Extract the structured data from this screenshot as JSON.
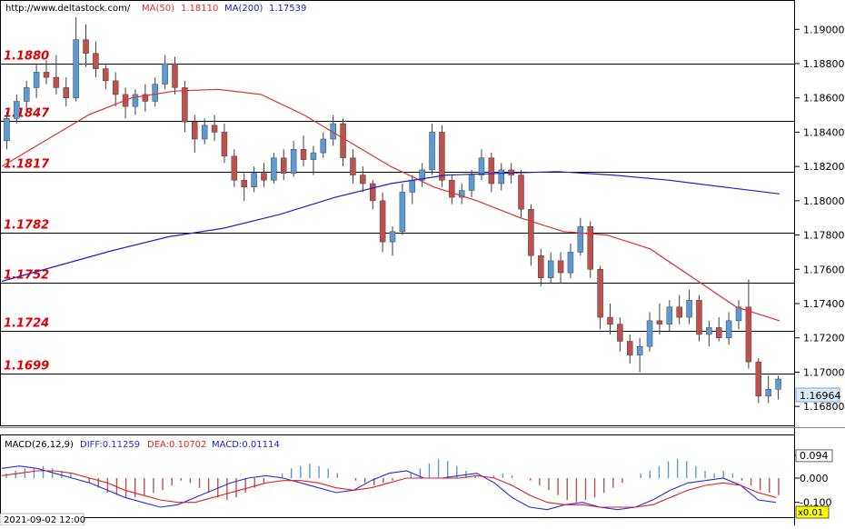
{
  "header": {
    "url": "http://www.deltastock.com/",
    "ma50_label": "MA(50)",
    "ma50_value": "1.18110",
    "ma200_label": "MA(200)",
    "ma200_value": "1.17539"
  },
  "colors": {
    "bull": "#5b9bd5",
    "bear": "#c0504d",
    "ma50": "#e03030",
    "ma200": "#2020c8",
    "level_text": "#e00000",
    "macd_diff": "#2b2be0",
    "macd_dea": "#e02020"
  },
  "chart_data": [
    {
      "type": "candlestick",
      "ylim": [
        1.167,
        1.1915
      ],
      "y_ticks": [
        "1.19000",
        "1.18800",
        "1.18600",
        "1.18400",
        "1.18200",
        "1.18000",
        "1.17800",
        "1.17600",
        "1.17400",
        "1.17200",
        "1.17000",
        "1.16800"
      ],
      "y_tick_values": [
        1.19,
        1.188,
        1.186,
        1.184,
        1.182,
        1.18,
        1.178,
        1.176,
        1.174,
        1.172,
        1.17,
        1.168
      ],
      "last_price": "1.16964",
      "last_price_value": 1.16964,
      "levels": [
        {
          "label": "1.1880",
          "value": 1.188
        },
        {
          "label": "1.1847",
          "value": 1.18468
        },
        {
          "label": "1.1817",
          "value": 1.18168
        },
        {
          "label": "1.1782",
          "value": 1.17815
        },
        {
          "label": "1.1752",
          "value": 1.17522
        },
        {
          "label": "1.1724",
          "value": 1.17243
        },
        {
          "label": "1.1699",
          "value": 1.16993
        }
      ],
      "candles_ohlc": [
        [
          1.1835,
          1.1852,
          1.183,
          1.1848
        ],
        [
          1.1848,
          1.1862,
          1.1845,
          1.1858
        ],
        [
          1.1858,
          1.187,
          1.1852,
          1.1866
        ],
        [
          1.1866,
          1.188,
          1.186,
          1.1875
        ],
        [
          1.1875,
          1.1882,
          1.1868,
          1.1872
        ],
        [
          1.1872,
          1.1885,
          1.1862,
          1.1866
        ],
        [
          1.1866,
          1.1872,
          1.1855,
          1.186
        ],
        [
          1.186,
          1.1907,
          1.1858,
          1.1894
        ],
        [
          1.1894,
          1.1903,
          1.1878,
          1.1886
        ],
        [
          1.1886,
          1.1893,
          1.1872,
          1.1877
        ],
        [
          1.1877,
          1.188,
          1.1865,
          1.187
        ],
        [
          1.187,
          1.1875,
          1.1855,
          1.1862
        ],
        [
          1.1862,
          1.1866,
          1.1848,
          1.1855
        ],
        [
          1.1855,
          1.1865,
          1.185,
          1.1862
        ],
        [
          1.1862,
          1.1868,
          1.1852,
          1.1858
        ],
        [
          1.1858,
          1.1872,
          1.1855,
          1.1868
        ],
        [
          1.1868,
          1.1885,
          1.1865,
          1.188
        ],
        [
          1.188,
          1.1884,
          1.1862,
          1.1866
        ],
        [
          1.1866,
          1.187,
          1.184,
          1.1846
        ],
        [
          1.1846,
          1.185,
          1.1828,
          1.1836
        ],
        [
          1.1836,
          1.1848,
          1.1833,
          1.1844
        ],
        [
          1.1844,
          1.185,
          1.1835,
          1.184
        ],
        [
          1.184,
          1.1845,
          1.1822,
          1.1826
        ],
        [
          1.1826,
          1.183,
          1.1808,
          1.1812
        ],
        [
          1.1812,
          1.1816,
          1.18,
          1.1808
        ],
        [
          1.1808,
          1.182,
          1.1805,
          1.1816
        ],
        [
          1.1816,
          1.1822,
          1.1808,
          1.1812
        ],
        [
          1.1812,
          1.1828,
          1.181,
          1.1825
        ],
        [
          1.1825,
          1.183,
          1.1812,
          1.1816
        ],
        [
          1.1816,
          1.1835,
          1.1814,
          1.183
        ],
        [
          1.183,
          1.1838,
          1.182,
          1.1824
        ],
        [
          1.1824,
          1.1832,
          1.1815,
          1.1828
        ],
        [
          1.1828,
          1.184,
          1.1825,
          1.1836
        ],
        [
          1.1836,
          1.185,
          1.1832,
          1.1845
        ],
        [
          1.1845,
          1.1848,
          1.182,
          1.1825
        ],
        [
          1.1825,
          1.183,
          1.181,
          1.1815
        ],
        [
          1.1815,
          1.182,
          1.1805,
          1.181
        ],
        [
          1.181,
          1.1812,
          1.1795,
          1.18
        ],
        [
          1.18,
          1.1805,
          1.177,
          1.1776
        ],
        [
          1.1776,
          1.1785,
          1.1768,
          1.1782
        ],
        [
          1.1782,
          1.181,
          1.178,
          1.1805
        ],
        [
          1.1805,
          1.1815,
          1.1798,
          1.1812
        ],
        [
          1.1812,
          1.1822,
          1.1808,
          1.1818
        ],
        [
          1.1818,
          1.1845,
          1.1815,
          1.184
        ],
        [
          1.184,
          1.1844,
          1.1808,
          1.1812
        ],
        [
          1.1812,
          1.1815,
          1.1798,
          1.1802
        ],
        [
          1.1802,
          1.181,
          1.1798,
          1.1806
        ],
        [
          1.1806,
          1.1818,
          1.1802,
          1.1815
        ],
        [
          1.1815,
          1.183,
          1.1812,
          1.1825
        ],
        [
          1.1825,
          1.1828,
          1.1805,
          1.181
        ],
        [
          1.181,
          1.1822,
          1.1806,
          1.1818
        ],
        [
          1.1818,
          1.1822,
          1.181,
          1.1815
        ],
        [
          1.1815,
          1.1818,
          1.179,
          1.1795
        ],
        [
          1.1795,
          1.1798,
          1.1762,
          1.1768
        ],
        [
          1.1768,
          1.1772,
          1.175,
          1.1755
        ],
        [
          1.1755,
          1.177,
          1.1752,
          1.1765
        ],
        [
          1.1765,
          1.177,
          1.1752,
          1.1758
        ],
        [
          1.1758,
          1.1775,
          1.1755,
          1.177
        ],
        [
          1.177,
          1.179,
          1.1768,
          1.1785
        ],
        [
          1.1785,
          1.1788,
          1.1755,
          1.176
        ],
        [
          1.176,
          1.1762,
          1.1725,
          1.1732
        ],
        [
          1.1732,
          1.174,
          1.1722,
          1.1728
        ],
        [
          1.1728,
          1.1732,
          1.1712,
          1.1718
        ],
        [
          1.1718,
          1.1722,
          1.1705,
          1.171
        ],
        [
          1.171,
          1.172,
          1.17,
          1.1715
        ],
        [
          1.1715,
          1.1735,
          1.1712,
          1.173
        ],
        [
          1.173,
          1.174,
          1.1722,
          1.1728
        ],
        [
          1.1728,
          1.1742,
          1.1724,
          1.1738
        ],
        [
          1.1738,
          1.1745,
          1.1728,
          1.1732
        ],
        [
          1.1732,
          1.1748,
          1.1728,
          1.1742
        ],
        [
          1.1742,
          1.1745,
          1.1718,
          1.1722
        ],
        [
          1.1722,
          1.173,
          1.1715,
          1.1726
        ],
        [
          1.1726,
          1.1732,
          1.1718,
          1.172
        ],
        [
          1.172,
          1.1735,
          1.1716,
          1.173
        ],
        [
          1.173,
          1.1742,
          1.1725,
          1.1738
        ],
        [
          1.1738,
          1.1754,
          1.1702,
          1.1706
        ],
        [
          1.1706,
          1.1708,
          1.1682,
          1.1686
        ],
        [
          1.1686,
          1.1698,
          1.1682,
          1.169
        ],
        [
          1.169,
          1.1698,
          1.1684,
          1.1696
        ]
      ],
      "ma50": [
        1.182,
        1.1835,
        1.185,
        1.186,
        1.1864,
        1.1865,
        1.1862,
        1.185,
        1.1835,
        1.182,
        1.1808,
        1.18,
        1.179,
        1.1782,
        1.178,
        1.1772,
        1.1755,
        1.1738,
        1.173
      ],
      "ma200": [
        1.1753,
        1.1762,
        1.1771,
        1.1779,
        1.1784,
        1.1792,
        1.1802,
        1.181,
        1.1815,
        1.1816,
        1.1817,
        1.1815,
        1.1812,
        1.1808,
        1.1804
      ],
      "series": [
        {
          "name": "MA(50)"
        },
        {
          "name": "MA(200)"
        }
      ]
    },
    {
      "type": "macd",
      "title": "MACD(26,12,9)",
      "diff_label": "DIFF:0.11259",
      "dea_label": "DEA:0.10702",
      "macd_label": "MACD:0.01114",
      "ylim": [
        -0.15,
        0.12
      ],
      "y_ticks": [
        "0.094",
        "0.000",
        "-0.100"
      ],
      "y_tick_values": [
        0.094,
        0.0,
        -0.1
      ],
      "readout": "x0.01",
      "histogram": [
        0.02,
        0.03,
        0.04,
        0.04,
        0.05,
        0.04,
        0.03,
        0.02,
        0.0,
        -0.02,
        -0.04,
        -0.06,
        -0.07,
        -0.08,
        -0.08,
        -0.07,
        -0.06,
        -0.05,
        -0.03,
        -0.01,
        -0.02,
        -0.04,
        -0.06,
        -0.08,
        -0.09,
        -0.08,
        -0.06,
        -0.04,
        -0.02,
        0.0,
        0.02,
        0.04,
        0.05,
        0.06,
        0.05,
        0.04,
        0.02,
        0.0,
        -0.01,
        -0.02,
        -0.03,
        -0.02,
        -0.01,
        0.0,
        0.02,
        0.04,
        0.06,
        0.08,
        0.07,
        0.05,
        0.03,
        0.01,
        0.0,
        0.01,
        0.02,
        0.01,
        0.0,
        -0.01,
        -0.03,
        -0.05,
        -0.07,
        -0.09,
        -0.1,
        -0.09,
        -0.08,
        -0.06,
        -0.04,
        -0.02,
        0.0,
        0.02,
        0.03,
        0.05,
        0.07,
        0.08,
        0.07,
        0.05,
        0.03,
        0.02,
        0.03,
        0.02,
        -0.01,
        -0.03,
        -0.05,
        -0.06,
        -0.07
      ],
      "diff": [
        0.04,
        0.05,
        0.04,
        0.02,
        0.0,
        -0.02,
        -0.05,
        -0.08,
        -0.1,
        -0.12,
        -0.11,
        -0.08,
        -0.05,
        -0.02,
        0.0,
        0.01,
        0.0,
        -0.02,
        -0.04,
        -0.06,
        -0.05,
        -0.01,
        0.02,
        0.03,
        0.0,
        0.0,
        0.01,
        0.02,
        -0.02,
        -0.08,
        -0.12,
        -0.13,
        -0.11,
        -0.1,
        -0.12,
        -0.13,
        -0.12,
        -0.09,
        -0.05,
        -0.02,
        -0.01,
        0.0,
        -0.03,
        -0.09,
        -0.1
      ],
      "dea": [
        0.01,
        0.02,
        0.03,
        0.03,
        0.02,
        0.0,
        -0.02,
        -0.05,
        -0.07,
        -0.09,
        -0.1,
        -0.1,
        -0.08,
        -0.06,
        -0.04,
        -0.02,
        -0.01,
        -0.01,
        -0.02,
        -0.04,
        -0.05,
        -0.04,
        -0.02,
        0.0,
        0.0,
        0.0,
        0.0,
        0.01,
        0.0,
        -0.03,
        -0.07,
        -0.1,
        -0.11,
        -0.11,
        -0.12,
        -0.12,
        -0.12,
        -0.11,
        -0.08,
        -0.05,
        -0.03,
        -0.02,
        -0.03,
        -0.06,
        -0.08
      ],
      "series": [
        {
          "name": "DIFF"
        },
        {
          "name": "DEA"
        },
        {
          "name": "MACD"
        }
      ]
    }
  ],
  "footer": {
    "date_label": "2021-09-02 12:00"
  }
}
